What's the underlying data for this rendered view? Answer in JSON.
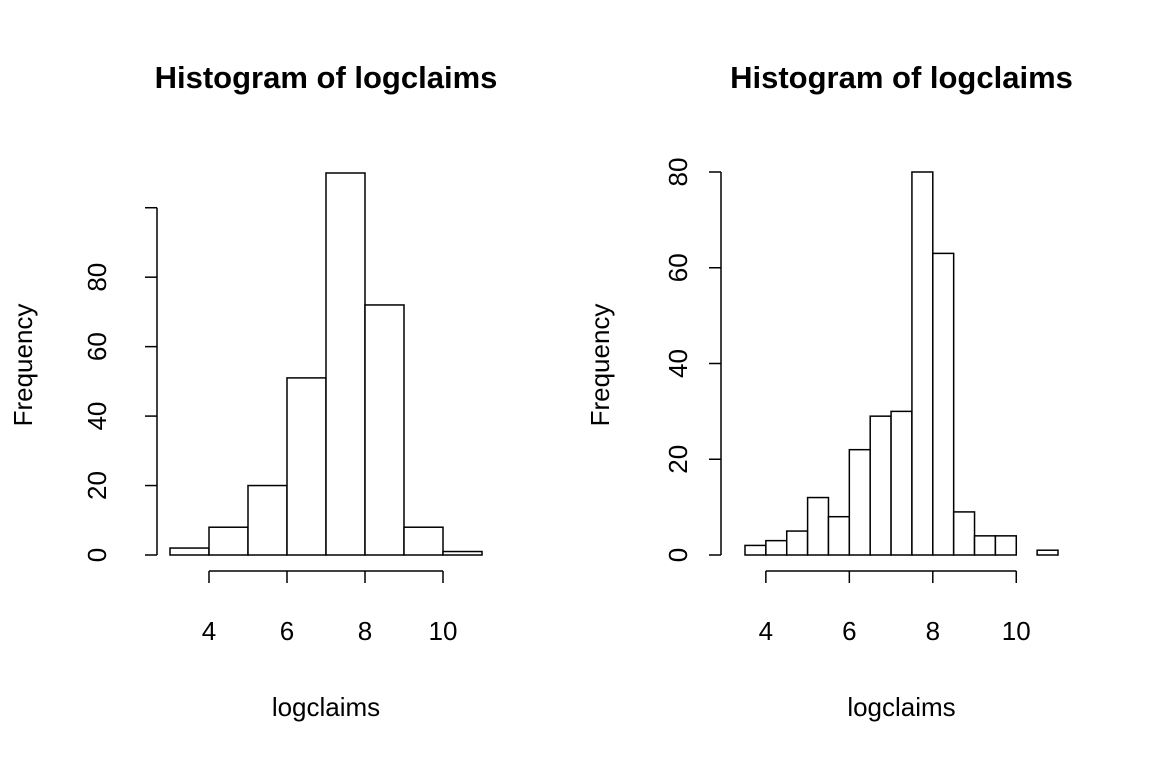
{
  "chart_data": [
    {
      "type": "histogram",
      "title": "Histogram of logclaims",
      "x_label": "logclaims",
      "y_label": "Frequency",
      "bins": [
        3,
        4,
        5,
        6,
        7,
        8,
        9,
        10,
        11
      ],
      "values": [
        2,
        8,
        20,
        51,
        110,
        72,
        8,
        1
      ],
      "xlim": [
        3,
        11
      ],
      "xticks": [
        4,
        6,
        8,
        10
      ],
      "ylim": [
        0,
        110
      ],
      "yticks": [
        0,
        20,
        40,
        60,
        80,
        {
          "value": 100,
          "label": null
        }
      ],
      "color": "#ffffff"
    },
    {
      "type": "histogram",
      "title": "Histogram of logclaims",
      "x_label": "logclaims",
      "y_label": "Frequency",
      "bins": [
        3.5,
        4,
        4.5,
        5,
        5.5,
        6,
        6.5,
        7,
        7.5,
        8,
        8.5,
        9,
        9.5,
        10,
        10.5,
        11
      ],
      "values": [
        2,
        3,
        5,
        12,
        8,
        22,
        29,
        30,
        80,
        63,
        9,
        4,
        4,
        0,
        1
      ],
      "xlim": [
        3.5,
        11
      ],
      "xticks": [
        4,
        6,
        8,
        10
      ],
      "ylim": [
        0,
        80
      ],
      "yticks": [
        0,
        20,
        40,
        60,
        80
      ],
      "color": "#ffffff"
    }
  ]
}
